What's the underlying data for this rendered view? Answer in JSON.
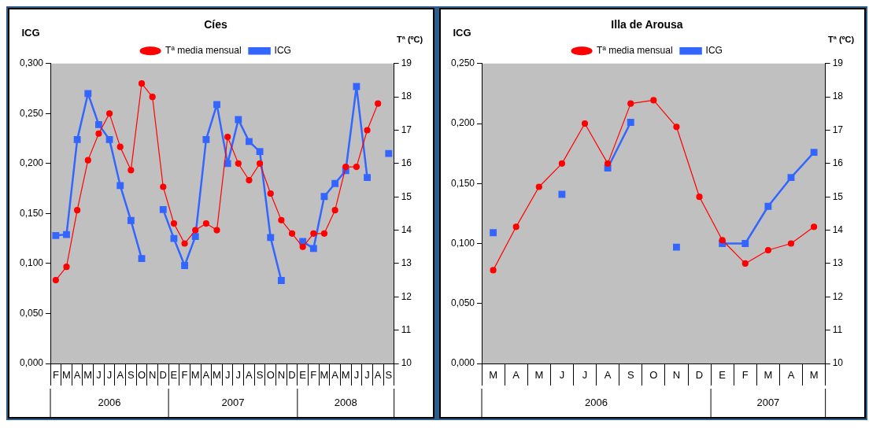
{
  "chart_data": [
    {
      "type": "line",
      "title": "Cíes",
      "ylabel": "ICG",
      "y2label": "Tª (ºC)",
      "legend": "top",
      "grid": false,
      "categories": [
        "F",
        "M",
        "A",
        "M",
        "J",
        "J",
        "A",
        "S",
        "O",
        "N",
        "D",
        "E",
        "F",
        "M",
        "A",
        "M",
        "J",
        "J",
        "A",
        "S",
        "O",
        "N",
        "D",
        "E",
        "F",
        "M",
        "A",
        "M",
        "J",
        "J",
        "A",
        "S"
      ],
      "annotations": [
        "2006",
        "2007",
        "2008"
      ],
      "series": [
        {
          "name": "ICG",
          "color": "#3366ff",
          "marker": "square",
          "values": [
            0.128,
            0.129,
            0.224,
            0.27,
            0.239,
            0.224,
            0.178,
            0.143,
            0.105,
            null,
            0.154,
            0.125,
            0.098,
            0.127,
            0.224,
            0.259,
            0.2,
            0.244,
            0.222,
            0.212,
            0.126,
            0.083,
            null,
            0.122,
            0.115,
            0.167,
            0.18,
            0.193,
            0.277,
            0.186,
            null,
            0.21
          ]
        },
        {
          "name": "Tª media mensual",
          "color": "#ff0000",
          "marker": "circle",
          "axis": "y2",
          "values": [
            12.5,
            12.9,
            14.6,
            16.1,
            16.9,
            17.5,
            16.5,
            15.8,
            18.4,
            18.0,
            15.3,
            14.2,
            13.6,
            14.0,
            14.2,
            14.0,
            16.8,
            16.0,
            15.5,
            16.0,
            15.1,
            14.3,
            13.9,
            13.5,
            13.9,
            13.9,
            14.6,
            15.9,
            15.9,
            17.0,
            17.8,
            null
          ]
        }
      ],
      "ylim": [
        0,
        0.3
      ],
      "yticks": [
        {
          "value": 0,
          "label": "0,000"
        },
        {
          "value": 0.05,
          "label": "0,050"
        },
        {
          "value": 0.1,
          "label": "0,100"
        },
        {
          "value": 0.15,
          "label": "0,150"
        },
        {
          "value": 0.2,
          "label": "0,200"
        },
        {
          "value": 0.25,
          "label": "0,250"
        },
        {
          "value": 0.3,
          "label": "0,300"
        }
      ],
      "y2lim": [
        10,
        19
      ],
      "y2ticks": [
        10,
        11,
        12,
        13,
        14,
        15,
        16,
        17,
        18,
        19
      ]
    },
    {
      "type": "line",
      "title": "Illa de Arousa",
      "ylabel": "ICG",
      "y2label": "Tª (ºC)",
      "legend": "top",
      "grid": false,
      "categories": [
        "M",
        "A",
        "M",
        "J",
        "J",
        "A",
        "S",
        "O",
        "N",
        "D",
        "E",
        "F",
        "M",
        "A",
        "M"
      ],
      "annotations": [
        "2006",
        "2007"
      ],
      "series": [
        {
          "name": "ICG",
          "color": "#3366ff",
          "marker": "square",
          "values": [
            0.109,
            null,
            null,
            0.141,
            null,
            0.163,
            0.201,
            null,
            0.097,
            null,
            0.1,
            0.1,
            0.131,
            0.155,
            0.176
          ]
        },
        {
          "name": "Tª media mensual",
          "color": "#ff0000",
          "marker": "circle",
          "axis": "y2",
          "values": [
            12.8,
            14.1,
            15.3,
            16.0,
            17.2,
            16.0,
            17.8,
            17.9,
            17.1,
            15.0,
            13.7,
            13.0,
            13.4,
            13.6,
            14.1
          ]
        }
      ],
      "ylim": [
        0,
        0.25
      ],
      "yticks": [
        {
          "value": 0,
          "label": "0,000"
        },
        {
          "value": 0.05,
          "label": "0,050"
        },
        {
          "value": 0.1,
          "label": "0,100"
        },
        {
          "value": 0.15,
          "label": "0,150"
        },
        {
          "value": 0.2,
          "label": "0,200"
        },
        {
          "value": 0.25,
          "label": "0,250"
        }
      ],
      "y2lim": [
        10,
        19
      ],
      "y2ticks": [
        10,
        11,
        12,
        13,
        14,
        15,
        16,
        17,
        18,
        19
      ]
    }
  ]
}
